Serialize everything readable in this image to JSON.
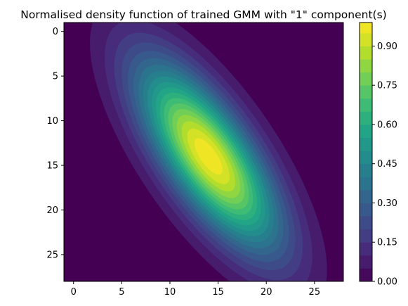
{
  "chart_data": {
    "type": "heatmap",
    "subtype": "filled-contour",
    "title": "Normalised density function of trained GMM with \"1\" component(s)",
    "xlabel": "",
    "ylabel": "",
    "xlim": [
      -1,
      28
    ],
    "ylim": [
      28,
      -1
    ],
    "y_axis_inverted": true,
    "x_ticks": [
      0,
      5,
      10,
      15,
      20,
      25
    ],
    "x_tick_labels": [
      "0",
      "5",
      "10",
      "15",
      "20",
      "25"
    ],
    "y_ticks": [
      0,
      5,
      10,
      15,
      20,
      25
    ],
    "y_tick_labels": [
      "0",
      "5",
      "10",
      "15",
      "20",
      "25"
    ],
    "colormap": "viridis",
    "colorbar": {
      "min": 0.0,
      "max": 0.99,
      "levels": [
        0.0,
        0.05,
        0.1,
        0.15,
        0.2,
        0.25,
        0.3,
        0.35,
        0.4,
        0.45,
        0.5,
        0.55,
        0.6,
        0.65,
        0.7,
        0.75,
        0.8,
        0.85,
        0.9,
        0.95,
        0.99
      ],
      "ticks": [
        0.0,
        0.15,
        0.3,
        0.45,
        0.6,
        0.75,
        0.9
      ],
      "tick_labels": [
        "0.00",
        "0.15",
        "0.30",
        "0.45",
        "0.60",
        "0.75",
        "0.90"
      ],
      "placement": "right"
    },
    "gaussian": {
      "mean_x": 14,
      "mean_y": 14,
      "major_axis_angle_deg_from_x_toward_down": 58,
      "sigma_major": 8.2,
      "sigma_minor": 3.0,
      "peak_value": 0.99
    },
    "grid": false
  }
}
